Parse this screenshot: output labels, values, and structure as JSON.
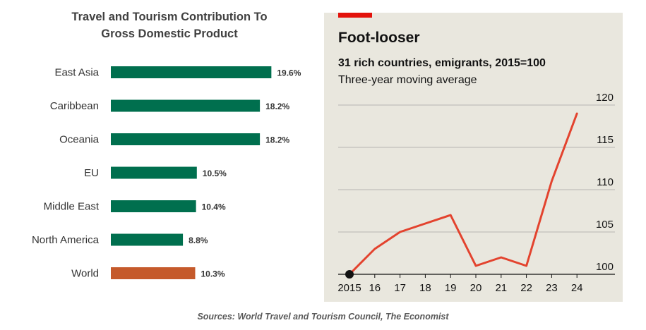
{
  "chart_data": [
    {
      "type": "bar",
      "orientation": "horizontal",
      "title": "Travel and Tourism Contribution To Gross Domestic Product",
      "title_lines": [
        "Travel and Tourism Contribution To",
        "Gross Domestic Product"
      ],
      "categories": [
        "East Asia",
        "Caribbean",
        "Oceania",
        "EU",
        "Middle East",
        "North America",
        "World"
      ],
      "values": [
        19.6,
        18.2,
        18.2,
        10.5,
        10.4,
        8.8,
        10.3
      ],
      "value_labels": [
        "19.6%",
        "18.2%",
        "18.2%",
        "10.5%",
        "10.4%",
        "8.8%",
        "10.3%"
      ],
      "unit": "%",
      "colors": [
        "#006f4e",
        "#006f4e",
        "#006f4e",
        "#006f4e",
        "#006f4e",
        "#006f4e",
        "#c55a2b"
      ],
      "xlim": [
        0,
        20
      ],
      "grid": false
    },
    {
      "type": "line",
      "title": "Foot-looser",
      "subtitle": "31 rich countries, emigrants, 2015=100",
      "subtitle2": "Three-year moving average",
      "x": [
        2015,
        2016,
        2017,
        2018,
        2019,
        2020,
        2021,
        2022,
        2023,
        2024
      ],
      "x_tick_labels": [
        "2015",
        "16",
        "17",
        "18",
        "19",
        "20",
        "21",
        "22",
        "23",
        "24"
      ],
      "series": [
        {
          "name": "Emigrants index",
          "values": [
            100,
            103,
            105,
            106,
            107,
            101,
            102,
            101,
            111,
            119
          ],
          "color": "#e3432e"
        }
      ],
      "ylim": [
        100,
        120
      ],
      "y_ticks": [
        100,
        105,
        110,
        115,
        120
      ],
      "y_axis_position": "right",
      "grid": true,
      "accent_bar_color": "#e3120b",
      "background": "#e9e7de"
    }
  ],
  "sources": "Sources: World Travel and Tourism Council, The Economist"
}
